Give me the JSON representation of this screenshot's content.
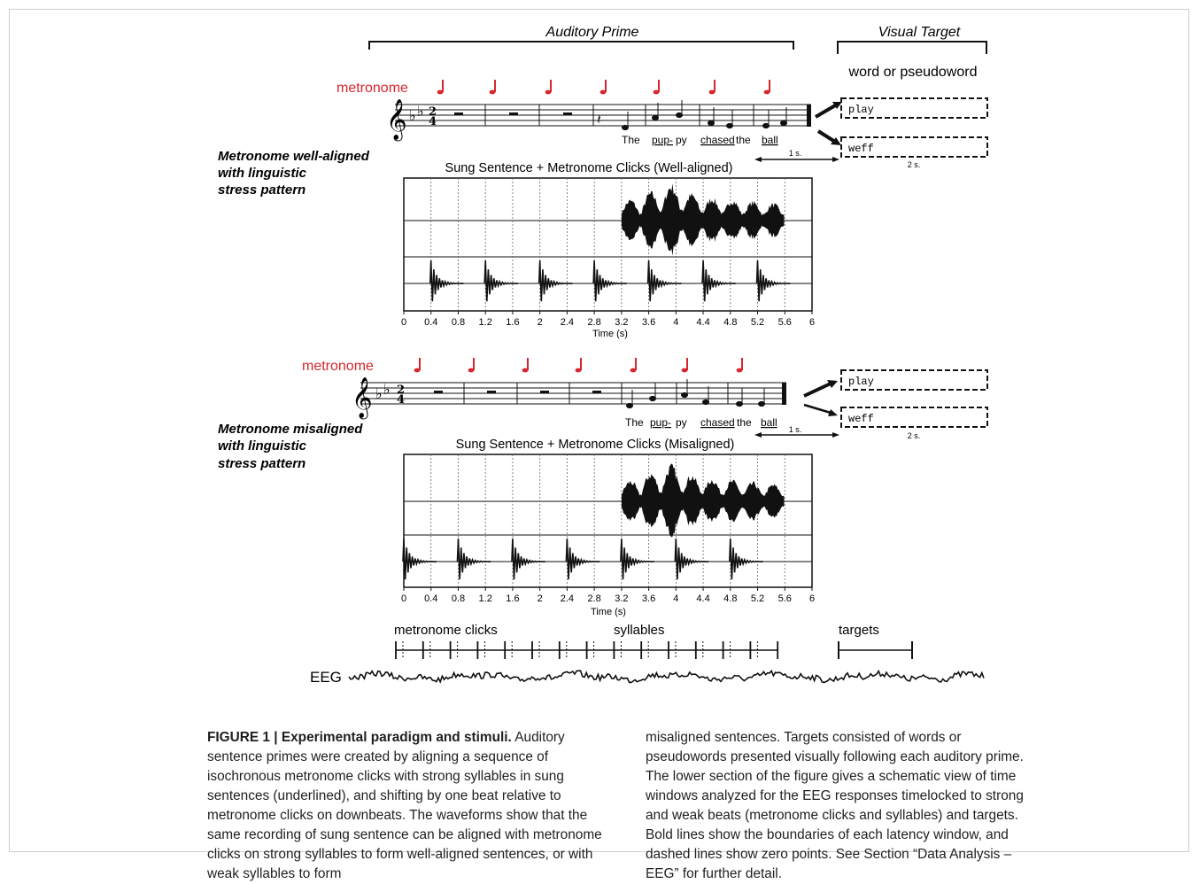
{
  "figure": {
    "header_auditory": "Auditory Prime",
    "header_visual": "Visual Target",
    "target_caption": "word or pseudoword",
    "metronome_label": "metronome",
    "word_target": "play",
    "pseudoword_target": "weff",
    "interval_1": "1 s.",
    "interval_2": "2 s.",
    "lyrics": [
      "The",
      "pup-",
      "py",
      "chased",
      "the",
      "ball"
    ],
    "aligned": {
      "condition": [
        "Metronome well-aligned",
        "with linguistic",
        "stress pattern"
      ],
      "waveform_title": "Sung Sentence + Metronome Clicks (Well-aligned)",
      "xlabel": "Time (s)",
      "xticks": [
        "0",
        "0.4",
        "0.8",
        "1.2",
        "1.6",
        "2",
        "2.4",
        "2.8",
        "3.2",
        "3.6",
        "4",
        "4.4",
        "4.8",
        "5.2",
        "5.6",
        "6"
      ],
      "click_times": [
        0.4,
        1.2,
        2.0,
        2.8,
        3.6,
        4.4,
        5.2
      ],
      "sung_onset": 3.2,
      "sung_offset": 5.6
    },
    "misaligned": {
      "condition": [
        "Metronome misaligned",
        "with linguistic",
        "stress pattern"
      ],
      "waveform_title": "Sung Sentence + Metronome Clicks (Misaligned)",
      "xlabel": "Time (s)",
      "xticks": [
        "0",
        "0.4",
        "0.8",
        "1.2",
        "1.6",
        "2",
        "2.4",
        "2.8",
        "3.2",
        "3.6",
        "4",
        "4.4",
        "4.8",
        "5.2",
        "5.6",
        "6"
      ],
      "click_times": [
        0.0,
        0.8,
        1.6,
        2.4,
        3.2,
        4.0,
        4.8
      ],
      "sung_onset": 3.2,
      "sung_offset": 5.6
    },
    "eeg": {
      "label_metronome": "metronome clicks",
      "label_syllables": "syllables",
      "label_targets": "targets",
      "trace_label": "EEG"
    }
  },
  "caption": {
    "label": "FIGURE 1 | Experimental paradigm and stimuli.",
    "text_left": " Auditory sentence primes were created by aligning a sequence of isochronous metronome clicks with strong syllables in sung sentences (underlined), and shifting by one beat relative to metronome clicks on downbeats. The waveforms show that the same recording of sung sentence can be aligned with metronome clicks on strong syllables to form well-aligned sentences, or with weak syllables to form",
    "text_right": "misaligned sentences. Targets consisted of words or pseudowords presented visually following each auditory prime. The lower section of the figure gives a schematic view of time windows analyzed for the EEG responses timelocked to strong and weak beats (metronome clicks and syllables) and targets. Bold lines show the boundaries of each latency window, and dashed lines show zero points. See Section “Data Analysis – EEG” for further detail."
  },
  "colors": {
    "metronome": "#d6262e",
    "ink": "#111111"
  }
}
